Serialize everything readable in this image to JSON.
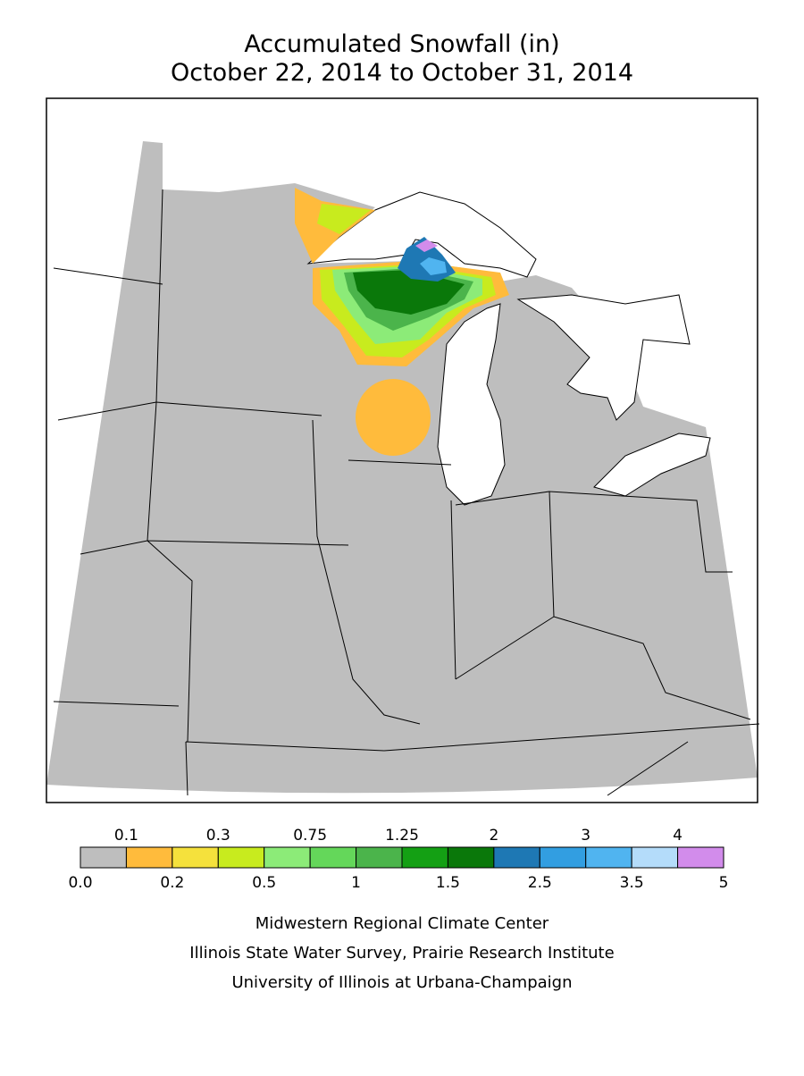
{
  "header": {
    "title": "Accumulated Snowfall (in)",
    "subtitle": "October 22, 2014 to October 31, 2014"
  },
  "legend": {
    "breaks": [
      {
        "value": 0,
        "label": "0.0"
      },
      0.1,
      0.2,
      0.3,
      0.5,
      0.75,
      1,
      1.25,
      1.5,
      2,
      2.5,
      3,
      3.5,
      4,
      5
    ],
    "colors": [
      "#bebebe",
      "#ffbb3c",
      "#f5e13c",
      "#c8eb1e",
      "#8ceb78",
      "#64d75a",
      "#4bb44b",
      "#14a014",
      "#0a780a",
      "#1e78b4",
      "#329ee1",
      "#50b4f0",
      "#b4dcfa",
      "#d28ceb"
    ]
  },
  "credits": [
    "Midwestern Regional Climate Center",
    "Illinois State Water Survey, Prairie Research Institute",
    "University of Illinois at Urbana-Champaign"
  ]
}
